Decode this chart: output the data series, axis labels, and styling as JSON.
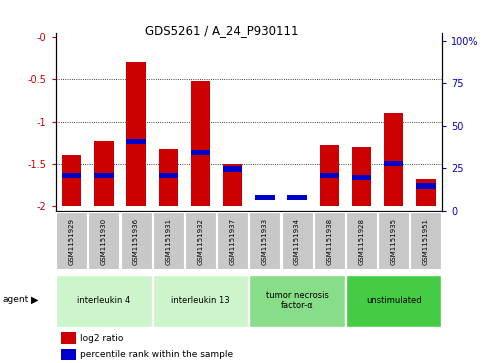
{
  "title": "GDS5261 / A_24_P930111",
  "samples": [
    "GSM1151929",
    "GSM1151930",
    "GSM1151936",
    "GSM1151931",
    "GSM1151932",
    "GSM1151937",
    "GSM1151933",
    "GSM1151934",
    "GSM1151938",
    "GSM1151928",
    "GSM1151935",
    "GSM1151951"
  ],
  "log2_ratios": [
    -1.4,
    -1.23,
    -0.3,
    -1.32,
    -0.52,
    -1.5,
    -2.0,
    -2.0,
    -1.28,
    -1.3,
    -0.9,
    -1.68
  ],
  "percentile_ranks": [
    18,
    18,
    38,
    18,
    32,
    22,
    5,
    5,
    18,
    17,
    25,
    12
  ],
  "bar_color": "#cc0000",
  "marker_color": "#0000cc",
  "groups": [
    {
      "label": "interleukin 4",
      "indices": [
        0,
        1,
        2
      ],
      "color": "#ccf5cc"
    },
    {
      "label": "interleukin 13",
      "indices": [
        3,
        4,
        5
      ],
      "color": "#ccf5cc"
    },
    {
      "label": "tumor necrosis\nfactor-α",
      "indices": [
        6,
        7,
        8
      ],
      "color": "#88dd88"
    },
    {
      "label": "unstimulated",
      "indices": [
        9,
        10,
        11
      ],
      "color": "#44cc44"
    }
  ],
  "ylim_left": [
    -2.05,
    0.05
  ],
  "yticks_left": [
    -2.0,
    -1.5,
    -1.0,
    -0.5,
    0.0
  ],
  "ytick_labels_left": [
    "-2",
    "-1.5",
    "-1",
    "-0.5",
    "-0"
  ],
  "ylim_right": [
    0,
    105
  ],
  "yticks_right": [
    0,
    25,
    50,
    75,
    100
  ],
  "ytick_labels_right": [
    "0",
    "25",
    "50",
    "75",
    "100%"
  ],
  "ylabel_left_color": "#cc0000",
  "ylabel_right_color": "#0000cc",
  "legend_items": [
    {
      "color": "#cc0000",
      "label": "log2 ratio"
    },
    {
      "color": "#0000cc",
      "label": "percentile rank within the sample"
    }
  ],
  "bar_width": 0.6,
  "agent_label": "agent"
}
